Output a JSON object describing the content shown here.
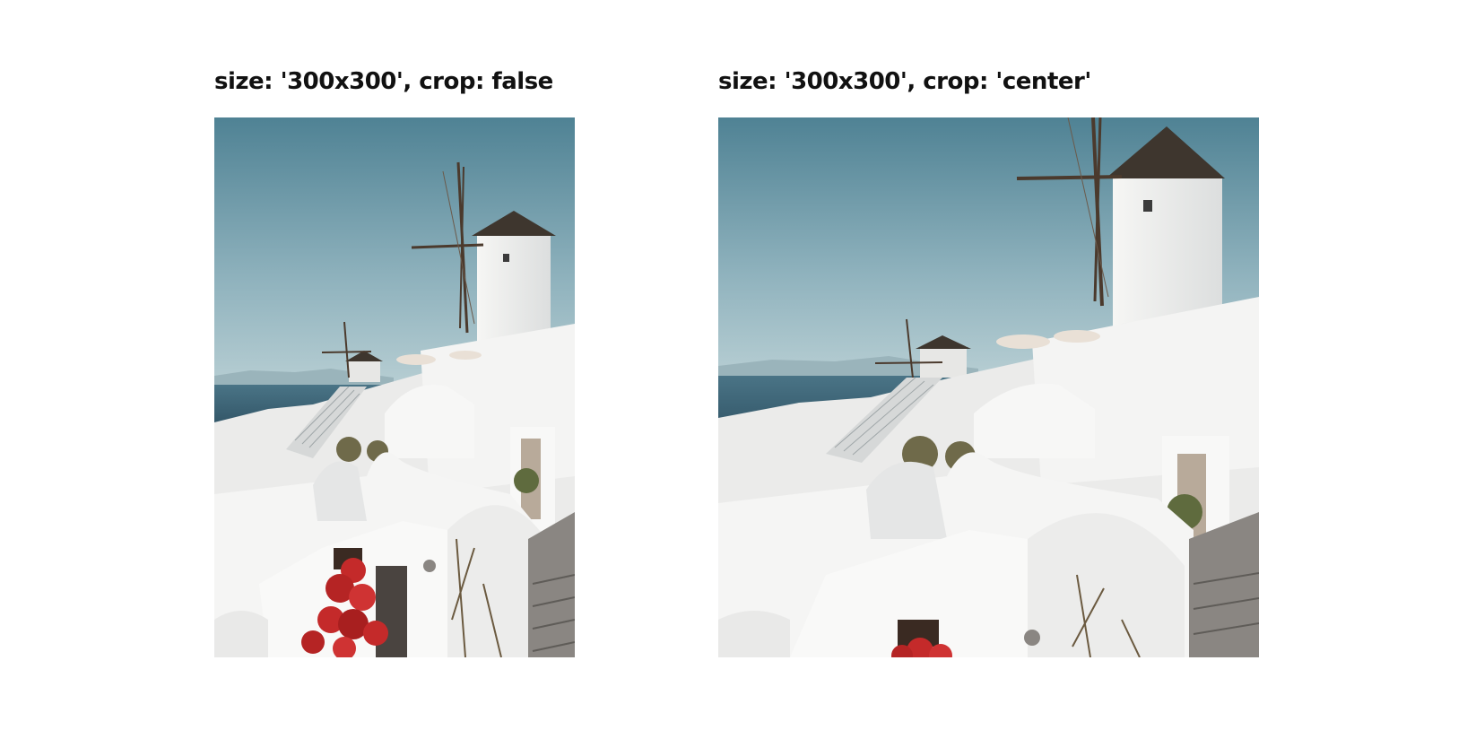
{
  "panels": [
    {
      "caption": "size: '300x300', crop: false",
      "image": {
        "subject": "santorini-windmill-photo",
        "crop": "none"
      }
    },
    {
      "caption": "size: '300x300', crop: 'center'",
      "image": {
        "subject": "santorini-windmill-photo",
        "crop": "center"
      }
    }
  ],
  "colors": {
    "sky_top": "#4f8294",
    "sky_bottom": "#a9c4cb",
    "sea": "#3a6275",
    "walls": "#f2f2f0",
    "shadow": "#d9dbdb",
    "roof": "#3e362e",
    "flowers": "#c42a2a"
  }
}
